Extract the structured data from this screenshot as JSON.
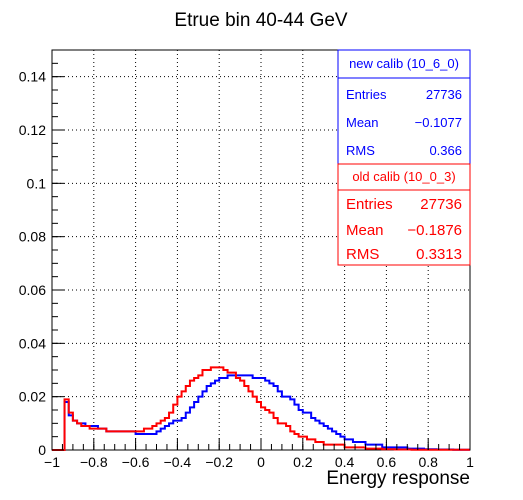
{
  "chart_data": {
    "type": "line",
    "title": "Etrue bin 40-44 GeV",
    "xlabel": "Energy response",
    "ylabel": "",
    "xlim": [
      -1,
      1
    ],
    "ylim": [
      0,
      0.15
    ],
    "grid": true,
    "x_ticks": [
      "−1",
      "−0.8",
      "−0.6",
      "−0.4",
      "−0.2",
      "0",
      "0.2",
      "0.4",
      "0.6",
      "0.8",
      "1"
    ],
    "x_tick_values": [
      -1,
      -0.8,
      -0.6,
      -0.4,
      -0.2,
      0,
      0.2,
      0.4,
      0.6,
      0.8,
      1
    ],
    "y_ticks": [
      "0",
      "0.02",
      "0.04",
      "0.06",
      "0.08",
      "0.1",
      "0.12",
      "0.14"
    ],
    "y_tick_values": [
      0,
      0.02,
      0.04,
      0.06,
      0.08,
      0.1,
      0.12,
      0.14
    ],
    "bin_edges_start": -1.0,
    "bin_width": 0.02,
    "series": [
      {
        "name": "new calib (10_6_0)",
        "color": "#0000ff",
        "values": [
          0,
          0,
          0,
          0.018,
          0.013,
          0.011,
          0.01,
          0.01,
          0.009,
          0.009,
          0.009,
          0.008,
          0.008,
          0.007,
          0.007,
          0.007,
          0.007,
          0.007,
          0.007,
          0.007,
          0.006,
          0.006,
          0.006,
          0.006,
          0.006,
          0.007,
          0.008,
          0.009,
          0.01,
          0.011,
          0.011,
          0.012,
          0.014,
          0.016,
          0.018,
          0.02,
          0.022,
          0.024,
          0.025,
          0.026,
          0.027,
          0.027,
          0.028,
          0.028,
          0.028,
          0.028,
          0.028,
          0.028,
          0.027,
          0.027,
          0.027,
          0.026,
          0.025,
          0.024,
          0.022,
          0.02,
          0.02,
          0.019,
          0.017,
          0.015,
          0.014,
          0.014,
          0.012,
          0.011,
          0.01,
          0.009,
          0.008,
          0.007,
          0.006,
          0.005,
          0.004,
          0.004,
          0.003,
          0.003,
          0.003,
          0.002,
          0.002,
          0.002,
          0.002,
          0.001,
          0.001,
          0.001,
          0.001,
          0.001,
          0.001,
          0.0005,
          0.0005,
          0.0005,
          0.0005,
          0.0003,
          0.0003,
          0.0003,
          0.0002,
          0.0002,
          0.0002,
          0.0002,
          0.0001,
          0.0001,
          0.0001,
          0.0001
        ],
        "stats": {
          "label": "new calib (10_6_0)",
          "entries_label": "Entries",
          "entries": "27736",
          "mean_label": "Mean",
          "mean": "−0.1077",
          "rms_label": "RMS",
          "rms": "0.366"
        }
      },
      {
        "name": "old calib (10_0_3)",
        "color": "#ff0000",
        "values": [
          0,
          0,
          0,
          0.019,
          0.014,
          0.011,
          0.01,
          0.009,
          0.009,
          0.008,
          0.008,
          0.008,
          0.008,
          0.007,
          0.007,
          0.007,
          0.007,
          0.007,
          0.007,
          0.007,
          0.007,
          0.007,
          0.008,
          0.008,
          0.009,
          0.01,
          0.011,
          0.012,
          0.014,
          0.017,
          0.02,
          0.022,
          0.024,
          0.026,
          0.027,
          0.028,
          0.03,
          0.03,
          0.031,
          0.031,
          0.031,
          0.03,
          0.029,
          0.029,
          0.027,
          0.026,
          0.024,
          0.022,
          0.02,
          0.018,
          0.016,
          0.015,
          0.014,
          0.012,
          0.01,
          0.01,
          0.009,
          0.007,
          0.006,
          0.005,
          0.005,
          0.004,
          0.004,
          0.003,
          0.003,
          0.002,
          0.002,
          0.002,
          0.002,
          0.002,
          0.001,
          0.001,
          0.001,
          0.001,
          0.001,
          0.0005,
          0.0005,
          0.0005,
          0.0005,
          0.0003,
          0.0003,
          0.0003,
          0.0002,
          0.0002,
          0.0002,
          0.0002,
          0.0001,
          0.0001,
          0.0001,
          0.0001,
          0.0001,
          0.0001,
          0.0001,
          0.0001,
          0.0001,
          0.0001,
          0.0001,
          0.0001,
          0.0001,
          0.0001
        ],
        "stats": {
          "label": "old calib (10_0_3)",
          "entries_label": "Entries",
          "entries": "27736",
          "mean_label": "Mean",
          "mean": "−0.1876",
          "rms_label": "RMS",
          "rms": "0.3313"
        }
      }
    ]
  }
}
